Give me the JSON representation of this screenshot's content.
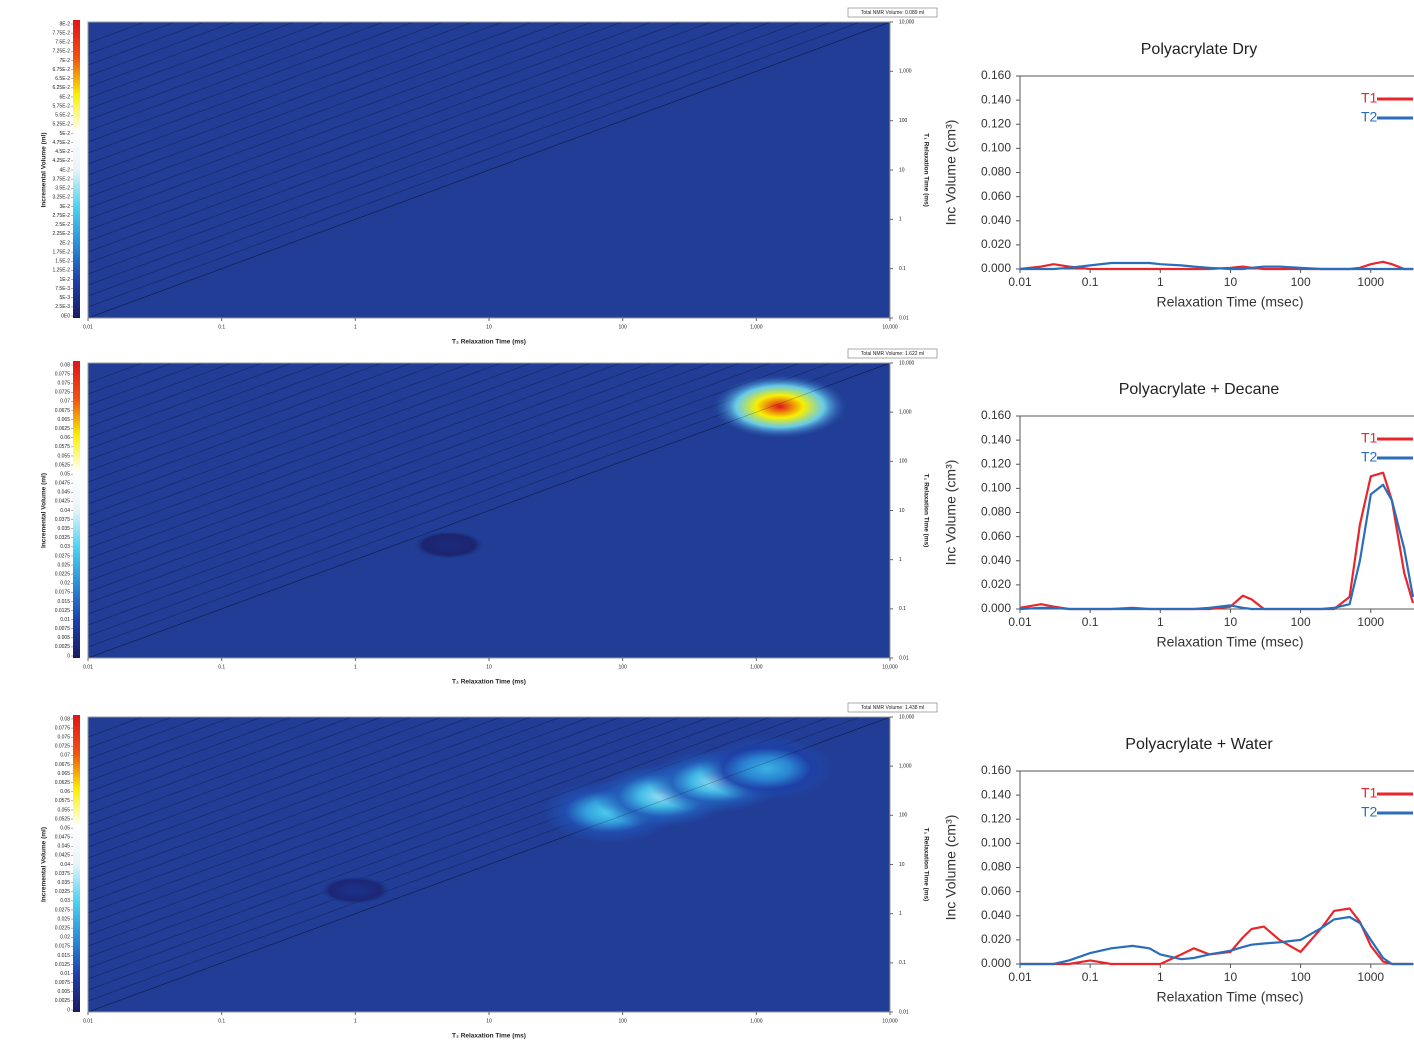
{
  "chart_data": [
    {
      "type": "heatmap",
      "total_volume_label": "Total NMR Volume: 0.089 ml",
      "xlabel": "T₂ Relaxation Time (ms)",
      "ylabel": "T₁ Relaxation Time (ms)",
      "colorbar_label": "Incremental Volume (ml)",
      "xlim": [
        0.01,
        10000
      ],
      "xticks": [
        0.01,
        0.1,
        1,
        10,
        100,
        {
          "value": 1000,
          "label": "1,000"
        },
        {
          "value": 10000,
          "label": "10,000"
        }
      ],
      "ylim": [
        0.01,
        10000
      ],
      "yticks": [
        0.01,
        0.1,
        1,
        10,
        100,
        {
          "value": 1000,
          "label": "1,000"
        },
        {
          "value": 10000,
          "label": "10,000"
        }
      ],
      "clim": [
        0,
        0.08
      ],
      "colorbar_ticks": [
        {
          "value": 0.08,
          "label": "8E-2"
        },
        {
          "value": 0.0775,
          "label": "7.75E-2"
        },
        {
          "value": 0.075,
          "label": "7.5E-2"
        },
        {
          "value": 0.0725,
          "label": "7.25E-2"
        },
        {
          "value": 0.07,
          "label": "7E-2"
        },
        {
          "value": 0.0675,
          "label": "6.75E-2"
        },
        {
          "value": 0.065,
          "label": "6.5E-2"
        },
        {
          "value": 0.0625,
          "label": "6.25E-2"
        },
        {
          "value": 0.06,
          "label": "6E-2"
        },
        {
          "value": 0.0575,
          "label": "5.75E-2"
        },
        {
          "value": 0.055,
          "label": "5.5E-2"
        },
        {
          "value": 0.0525,
          "label": "5.25E-2"
        },
        {
          "value": 0.05,
          "label": "5E-2"
        },
        {
          "value": 0.0475,
          "label": "4.75E-2"
        },
        {
          "value": 0.045,
          "label": "4.5E-2"
        },
        {
          "value": 0.0425,
          "label": "4.25E-2"
        },
        {
          "value": 0.04,
          "label": "4E-2"
        },
        {
          "value": 0.0375,
          "label": "3.75E-2"
        },
        {
          "value": 0.035,
          "label": "3.5E-2"
        },
        {
          "value": 0.0325,
          "label": "3.25E-2"
        },
        {
          "value": 0.03,
          "label": "3E-2"
        },
        {
          "value": 0.0275,
          "label": "2.75E-2"
        },
        {
          "value": 0.025,
          "label": "2.5E-2"
        },
        {
          "value": 0.0225,
          "label": "2.25E-2"
        },
        {
          "value": 0.02,
          "label": "2E-2"
        },
        {
          "value": 0.0175,
          "label": "1.75E-2"
        },
        {
          "value": 0.015,
          "label": "1.5E-2"
        },
        {
          "value": 0.0125,
          "label": "1.25E-2"
        },
        {
          "value": 0.01,
          "label": "1E-2"
        },
        {
          "value": 0.0075,
          "label": "7.5E-3"
        },
        {
          "value": 0.005,
          "label": "5E-3"
        },
        {
          "value": 0.0025,
          "label": "2.5E-3"
        },
        {
          "value": 0,
          "label": "0E0"
        }
      ],
      "colormap": [
        "#1b1c5f",
        "#1e3fa8",
        "#2b8fd8",
        "#4fd3f0",
        "#e8f4f8",
        "#ffffff",
        "#f8f000",
        "#f05010",
        "#e0141a"
      ]
    },
    {
      "type": "heatmap",
      "total_volume_label": "Total NMR Volume: 1.622 ml",
      "xlabel": "T₂ Relaxation Time (ms)",
      "ylabel": "T₁ Relaxation Time (ms)",
      "colorbar_label": "Incremental Volume (ml)",
      "xlim": [
        0.01,
        10000
      ],
      "xticks": [
        0.01,
        0.1,
        1,
        10,
        100,
        {
          "value": 1000,
          "label": "1,000"
        },
        {
          "value": 10000,
          "label": "10,000"
        }
      ],
      "ylim": [
        0.01,
        10000
      ],
      "yticks": [
        0.01,
        0.1,
        1,
        10,
        100,
        {
          "value": 1000,
          "label": "1,000"
        },
        {
          "value": 10000,
          "label": "10,000"
        }
      ],
      "clim": [
        0,
        0.08
      ],
      "colorbar_ticks": [
        0.08,
        0.0775,
        0.075,
        0.0725,
        0.07,
        0.0675,
        0.065,
        0.0625,
        0.06,
        0.0575,
        0.055,
        0.0525,
        0.05,
        0.0475,
        0.045,
        0.0425,
        0.04,
        0.0375,
        0.035,
        0.0325,
        0.03,
        0.0275,
        0.025,
        0.0225,
        0.02,
        0.0175,
        0.015,
        0.0125,
        0.01,
        0.0075,
        0.005,
        0.0025,
        0
      ],
      "colormap": [
        "#1b1c5f",
        "#1e3fa8",
        "#2b8fd8",
        "#4fd3f0",
        "#e8f4f8",
        "#ffffff",
        "#f8f000",
        "#f05010",
        "#e0141a"
      ],
      "peaks": [
        {
          "t2": 1500,
          "t1": 1300,
          "volume": 0.08
        },
        {
          "t2": 5,
          "t1": 2,
          "volume": 0.004
        }
      ]
    },
    {
      "type": "heatmap",
      "total_volume_label": "Total NMR Volume: 1.438 ml",
      "xlabel": "T₂ Relaxation Time (ms)",
      "ylabel": "T₁ Relaxation Time (ms)",
      "colorbar_label": "Incremental Volume (ml)",
      "xlim": [
        0.01,
        10000
      ],
      "xticks": [
        0.01,
        0.1,
        1,
        10,
        100,
        {
          "value": 1000,
          "label": "1,000"
        },
        {
          "value": 10000,
          "label": "10,000"
        }
      ],
      "ylim": [
        0.01,
        10000
      ],
      "yticks": [
        0.01,
        0.1,
        1,
        10,
        100,
        {
          "value": 1000,
          "label": "1,000"
        },
        {
          "value": 10000,
          "label": "10,000"
        }
      ],
      "clim": [
        0,
        0.08
      ],
      "colorbar_ticks": [
        0.08,
        0.0775,
        0.075,
        0.0725,
        0.07,
        0.0675,
        0.065,
        0.0625,
        0.06,
        0.0575,
        0.055,
        0.0525,
        0.05,
        0.0475,
        0.045,
        0.0425,
        0.04,
        0.0375,
        0.035,
        0.0325,
        0.03,
        0.0275,
        0.025,
        0.0225,
        0.02,
        0.0175,
        0.015,
        0.0125,
        0.01,
        0.0075,
        0.005,
        0.0025,
        0
      ],
      "colormap": [
        "#1b1c5f",
        "#1e3fa8",
        "#2b8fd8",
        "#4fd3f0",
        "#e8f4f8",
        "#ffffff",
        "#f8f000",
        "#f05010",
        "#e0141a"
      ],
      "peaks": [
        {
          "t2": 80,
          "t1": 120,
          "volume": 0.03
        },
        {
          "t2": 200,
          "t1": 250,
          "volume": 0.035
        },
        {
          "t2": 500,
          "t1": 500,
          "volume": 0.035
        },
        {
          "t2": 1200,
          "t1": 900,
          "volume": 0.025
        },
        {
          "t2": 1,
          "t1": 3,
          "volume": 0.006
        }
      ]
    },
    {
      "type": "line",
      "title": "Polyacrylate Dry",
      "xlabel": "Relaxation Time (msec)",
      "ylabel": "Inc Volume (cm³)",
      "xlog": true,
      "xlim": [
        0.01,
        4000
      ],
      "xticks": [
        0.01,
        0.1,
        1,
        10,
        100,
        1000
      ],
      "ylim": [
        0,
        0.16
      ],
      "yticks": [
        {
          "value": 0,
          "label": "0.000"
        },
        {
          "value": 0.02,
          "label": "0.020"
        },
        {
          "value": 0.04,
          "label": "0.040"
        },
        {
          "value": 0.06,
          "label": "0.060"
        },
        {
          "value": 0.08,
          "label": "0.080"
        },
        {
          "value": 0.1,
          "label": "0.100"
        },
        {
          "value": 0.12,
          "label": "0.120"
        },
        {
          "value": 0.14,
          "label": "0.140"
        },
        {
          "value": 0.16,
          "label": "0.160"
        }
      ],
      "x": [
        0.01,
        0.02,
        0.03,
        0.05,
        0.1,
        0.2,
        0.4,
        0.7,
        1,
        2,
        3,
        5,
        10,
        15,
        20,
        30,
        50,
        100,
        200,
        300,
        500,
        700,
        1000,
        1500,
        2000,
        3000,
        4000
      ],
      "series": [
        {
          "name": "T1",
          "color": "#e8262b",
          "values": [
            0,
            0.002,
            0.004,
            0.002,
            0,
            0,
            0,
            0,
            0,
            0,
            0,
            0,
            0.001,
            0.002,
            0.001,
            0,
            0,
            0,
            0,
            0,
            0,
            0.001,
            0.004,
            0.006,
            0.004,
            0,
            0
          ]
        },
        {
          "name": "T2",
          "color": "#2a6ebb",
          "values": [
            0,
            0,
            0,
            0.001,
            0.003,
            0.005,
            0.005,
            0.005,
            0.004,
            0.003,
            0.002,
            0.001,
            0,
            0,
            0.001,
            0.002,
            0.002,
            0.001,
            0,
            0,
            0,
            0,
            0,
            0,
            0,
            0,
            0
          ]
        }
      ]
    },
    {
      "type": "line",
      "title": "Polyacrylate + Decane",
      "xlabel": "Relaxation Time (msec)",
      "ylabel": "Inc Volume (cm³)",
      "xlog": true,
      "xlim": [
        0.01,
        4000
      ],
      "xticks": [
        0.01,
        0.1,
        1,
        10,
        100,
        1000
      ],
      "ylim": [
        0,
        0.16
      ],
      "yticks": [
        {
          "value": 0,
          "label": "0.000"
        },
        {
          "value": 0.02,
          "label": "0.020"
        },
        {
          "value": 0.04,
          "label": "0.040"
        },
        {
          "value": 0.06,
          "label": "0.060"
        },
        {
          "value": 0.08,
          "label": "0.080"
        },
        {
          "value": 0.1,
          "label": "0.100"
        },
        {
          "value": 0.12,
          "label": "0.120"
        },
        {
          "value": 0.14,
          "label": "0.140"
        },
        {
          "value": 0.16,
          "label": "0.160"
        }
      ],
      "x": [
        0.01,
        0.02,
        0.03,
        0.05,
        0.1,
        0.2,
        0.4,
        0.7,
        1,
        2,
        3,
        5,
        10,
        15,
        20,
        30,
        50,
        100,
        200,
        300,
        500,
        700,
        1000,
        1500,
        2000,
        3000,
        4000
      ],
      "series": [
        {
          "name": "T1",
          "color": "#e8262b",
          "values": [
            0.001,
            0.004,
            0.002,
            0,
            0,
            0,
            0.001,
            0,
            0,
            0,
            0,
            0,
            0.002,
            0.011,
            0.008,
            0,
            0,
            0,
            0,
            0,
            0.01,
            0.07,
            0.11,
            0.113,
            0.09,
            0.03,
            0.005
          ]
        },
        {
          "name": "T2",
          "color": "#2a6ebb",
          "values": [
            0,
            0.001,
            0.001,
            0,
            0,
            0,
            0,
            0,
            0,
            0,
            0,
            0.001,
            0.003,
            0.001,
            0,
            0,
            0,
            0,
            0,
            0.001,
            0.004,
            0.04,
            0.095,
            0.103,
            0.09,
            0.05,
            0.01
          ]
        }
      ]
    },
    {
      "type": "line",
      "title": "Polyacrylate + Water",
      "xlabel": "Relaxation Time (msec)",
      "ylabel": "Inc Volume (cm³)",
      "xlog": true,
      "xlim": [
        0.01,
        4000
      ],
      "xticks": [
        0.01,
        0.1,
        1,
        10,
        100,
        1000
      ],
      "ylim": [
        0,
        0.16
      ],
      "yticks": [
        {
          "value": 0,
          "label": "0.000"
        },
        {
          "value": 0.02,
          "label": "0.020"
        },
        {
          "value": 0.04,
          "label": "0.040"
        },
        {
          "value": 0.06,
          "label": "0.060"
        },
        {
          "value": 0.08,
          "label": "0.080"
        },
        {
          "value": 0.1,
          "label": "0.100"
        },
        {
          "value": 0.12,
          "label": "0.120"
        },
        {
          "value": 0.14,
          "label": "0.140"
        },
        {
          "value": 0.16,
          "label": "0.160"
        }
      ],
      "x": [
        0.01,
        0.02,
        0.03,
        0.05,
        0.1,
        0.2,
        0.4,
        0.7,
        1,
        2,
        3,
        5,
        10,
        15,
        20,
        30,
        50,
        100,
        200,
        300,
        500,
        700,
        1000,
        1500,
        2000,
        3000,
        4000
      ],
      "series": [
        {
          "name": "T1",
          "color": "#e8262b",
          "values": [
            0,
            0,
            0,
            0,
            0.003,
            0,
            0,
            0,
            0,
            0.008,
            0.013,
            0.008,
            0.01,
            0.022,
            0.029,
            0.031,
            0.02,
            0.01,
            0.03,
            0.044,
            0.046,
            0.035,
            0.015,
            0.002,
            0,
            0,
            0
          ]
        },
        {
          "name": "T2",
          "color": "#2a6ebb",
          "values": [
            0,
            0,
            0,
            0.003,
            0.009,
            0.013,
            0.015,
            0.013,
            0.008,
            0.004,
            0.005,
            0.008,
            0.011,
            0.014,
            0.016,
            0.017,
            0.018,
            0.02,
            0.03,
            0.037,
            0.039,
            0.034,
            0.02,
            0.005,
            0,
            0,
            0
          ]
        }
      ]
    }
  ]
}
